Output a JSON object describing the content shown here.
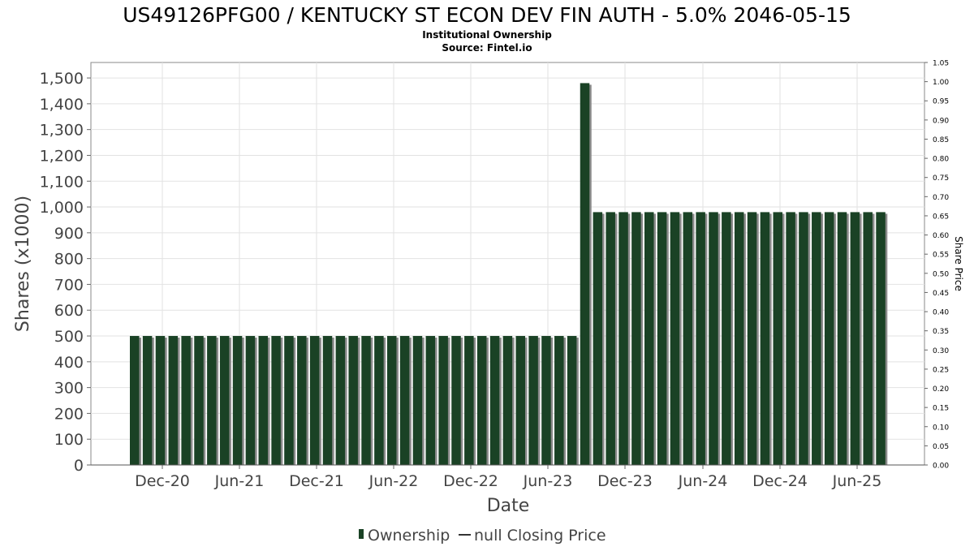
{
  "chart_data": {
    "type": "bar",
    "title": "US49126PFG00 / KENTUCKY ST ECON DEV FIN AUTH - 5.0% 2046-05-15",
    "subtitle_1": "Institutional Ownership",
    "subtitle_2": "Source: Fintel.io",
    "xlabel": "Date",
    "ylabel": "Shares (x1000)",
    "y2label": "Share Price",
    "ylim": [
      0,
      1560
    ],
    "y2lim": [
      0,
      1.05
    ],
    "y_ticks": [
      "0",
      "100",
      "200",
      "300",
      "400",
      "500",
      "600",
      "700",
      "800",
      "900",
      "1,000",
      "1,100",
      "1,200",
      "1,300",
      "1,400",
      "1,500"
    ],
    "y_tick_values": [
      0,
      100,
      200,
      300,
      400,
      500,
      600,
      700,
      800,
      900,
      1000,
      1100,
      1200,
      1300,
      1400,
      1500
    ],
    "y2_ticks": [
      "0.00",
      "0.05",
      "0.10",
      "0.15",
      "0.20",
      "0.25",
      "0.30",
      "0.35",
      "0.40",
      "0.45",
      "0.50",
      "0.55",
      "0.60",
      "0.65",
      "0.70",
      "0.75",
      "0.80",
      "0.85",
      "0.90",
      "0.95",
      "1.00",
      "1.05"
    ],
    "x_ticks": [
      "Dec-20",
      "Jun-21",
      "Dec-21",
      "Jun-22",
      "Dec-22",
      "Jun-23",
      "Dec-23",
      "Jun-24",
      "Dec-24",
      "Jun-25"
    ],
    "series": [
      {
        "name": "Ownership",
        "color": "#1a4225",
        "values": [
          500,
          500,
          500,
          500,
          500,
          500,
          500,
          500,
          500,
          500,
          500,
          500,
          500,
          500,
          500,
          500,
          500,
          500,
          500,
          500,
          500,
          500,
          500,
          500,
          500,
          500,
          500,
          500,
          500,
          500,
          500,
          500,
          500,
          500,
          500,
          1480,
          980,
          980,
          980,
          980,
          980,
          980,
          980,
          980,
          980,
          980,
          980,
          980,
          980,
          980,
          980,
          980,
          980,
          980,
          980,
          980,
          980,
          980,
          980
        ]
      }
    ],
    "legend": {
      "position": "bottom",
      "items": [
        {
          "label": "Ownership",
          "marker": "bar",
          "color": "#1a4225"
        },
        {
          "label": "null Closing Price",
          "marker": "line",
          "color": "#333333"
        }
      ]
    },
    "grid": true
  }
}
